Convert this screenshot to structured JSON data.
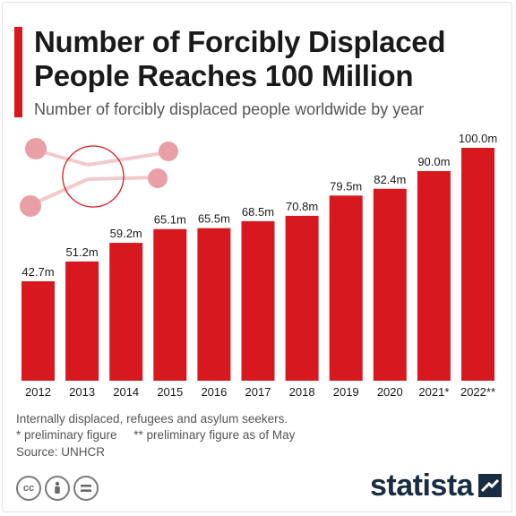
{
  "header": {
    "title_line1": "Number of Forcibly Displaced",
    "title_line2": "People Reaches 100 Million",
    "subtitle": "Number of forcibly displaced people worldwide by year"
  },
  "chart_data": {
    "type": "bar",
    "title": "Number of Forcibly Displaced People Reaches 100 Million",
    "subtitle": "Number of forcibly displaced people worldwide by year",
    "categories": [
      "2012",
      "2013",
      "2014",
      "2015",
      "2016",
      "2017",
      "2018",
      "2019",
      "2020",
      "2021*",
      "2022**"
    ],
    "values": [
      42.7,
      51.2,
      59.2,
      65.1,
      65.5,
      68.5,
      70.8,
      79.5,
      82.4,
      90.0,
      100.0
    ],
    "labels": [
      "42.7m",
      "51.2m",
      "59.2m",
      "65.1m",
      "65.5m",
      "68.5m",
      "70.8m",
      "79.5m",
      "82.4m",
      "90.0m",
      "100.0m"
    ],
    "unit": "m",
    "ylim": [
      0,
      100
    ],
    "grid": false,
    "bar_color": "#d7191f"
  },
  "footer": {
    "note": "Internally displaced, refugees and asylum seekers.",
    "prelim": "* preliminary figure     ** preliminary figure as of May",
    "source": "Source: UNHCR",
    "brand": "statista"
  },
  "colors": {
    "accent": "#d7191f",
    "brand": "#1a2b44",
    "decor": "#e8a0a6"
  },
  "icons": [
    "cc-icon",
    "attribution-icon",
    "no-derivatives-icon"
  ]
}
